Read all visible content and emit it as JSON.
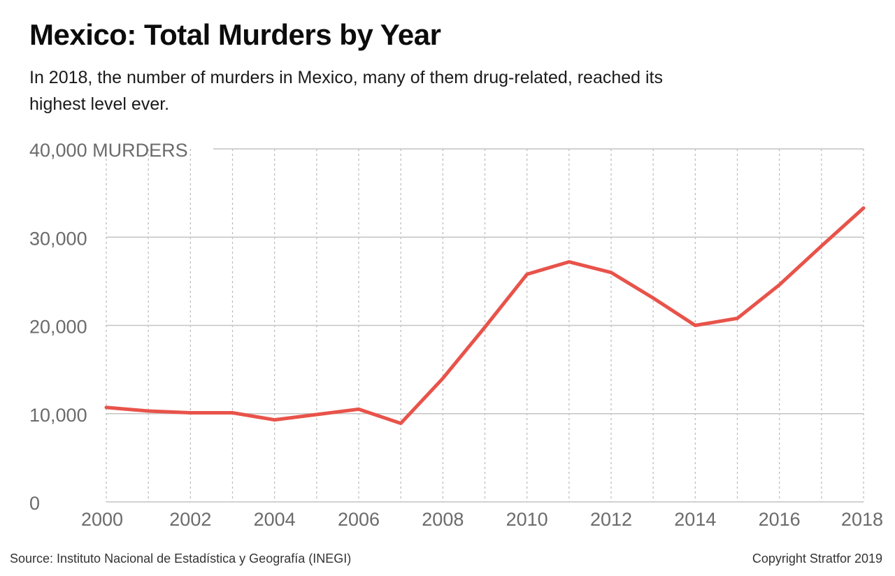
{
  "header": {
    "title": "Mexico: Total Murders by Year",
    "subtitle": "In 2018, the number of murders in Mexico, many of them drug-related, reached its highest level ever."
  },
  "footer": {
    "source": "Source: Instituto Nacional de Estadística y Geografía (INEGI)",
    "copyright": "Copyright Stratfor 2019"
  },
  "colors": {
    "line": "#e8534a",
    "gridline": "#c4c4c4",
    "tick_text": "#6b6b6b"
  },
  "chart_data": {
    "type": "line",
    "title": "Mexico: Total Murders by Year",
    "subtitle": "In 2018, the number of murders in Mexico, many of them drug-related, reached its highest level ever.",
    "xlabel": "",
    "ylabel": "MURDERS",
    "ylim": [
      0,
      40000
    ],
    "xlim": [
      2000,
      2018
    ],
    "y_ticks": [
      0,
      10000,
      20000,
      30000,
      40000
    ],
    "y_tick_labels": [
      "0",
      "10,000",
      "20,000",
      "30,000",
      "40,000 MURDERS"
    ],
    "x_ticks": [
      2000,
      2002,
      2004,
      2006,
      2008,
      2010,
      2012,
      2014,
      2016,
      2018
    ],
    "x_tick_labels": [
      "2000",
      "2002",
      "2004",
      "2006",
      "2008",
      "2010",
      "2012",
      "2014",
      "2016",
      "2018"
    ],
    "grid": {
      "horizontal": "solid",
      "vertical": "dotted-yearly"
    },
    "legend": "none",
    "series": [
      {
        "x": [
          2000,
          2001,
          2002,
          2003,
          2004,
          2005,
          2006,
          2007,
          2008,
          2009,
          2010,
          2011,
          2012,
          2013,
          2014,
          2015,
          2016,
          2017,
          2018
        ],
        "values": [
          10700,
          10300,
          10100,
          10100,
          9300,
          9900,
          10500,
          8900,
          14000,
          19800,
          25800,
          27200,
          26000,
          23100,
          20000,
          20800,
          24600,
          29000,
          33300
        ]
      }
    ]
  }
}
